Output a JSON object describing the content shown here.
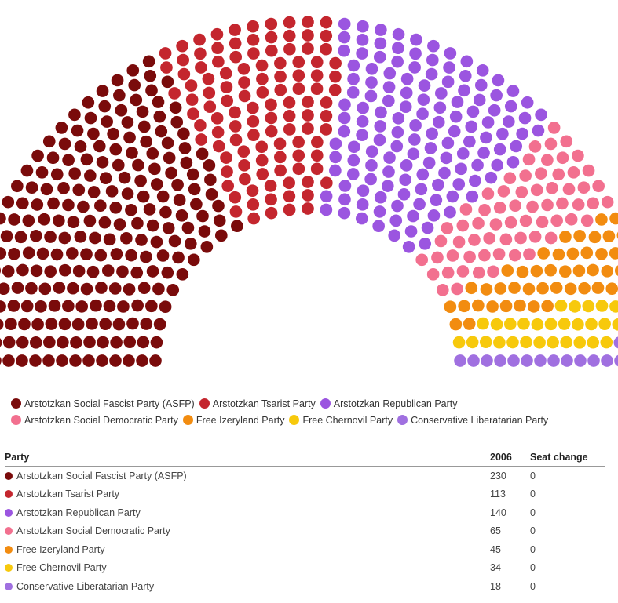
{
  "chart_data": {
    "type": "parliament",
    "total_seats": 645,
    "series": [
      {
        "name": "Arstotzkan Social Fascist Party (ASFP)",
        "seats": 230,
        "seat_change": 0,
        "color": "#7a0b0b"
      },
      {
        "name": "Arstotzkan Tsarist Party",
        "seats": 113,
        "seat_change": 0,
        "color": "#c4262e"
      },
      {
        "name": "Arstotzkan Republican Party",
        "seats": 140,
        "seat_change": 0,
        "color": "#9b55e0"
      },
      {
        "name": "Arstotzkan Social Democratic Party",
        "seats": 65,
        "seat_change": 0,
        "color": "#f2708f"
      },
      {
        "name": "Free Izeryland Party",
        "seats": 45,
        "seat_change": 0,
        "color": "#f28c10"
      },
      {
        "name": "Free Chernovil Party",
        "seats": 34,
        "seat_change": 0,
        "color": "#f7c90c"
      },
      {
        "name": "Conservative Liberatarian Party",
        "seats": 18,
        "seat_change": 0,
        "color": "#a070e0"
      }
    ]
  },
  "table": {
    "headers": {
      "party": "Party",
      "seats": "2006",
      "change": "Seat change"
    }
  }
}
